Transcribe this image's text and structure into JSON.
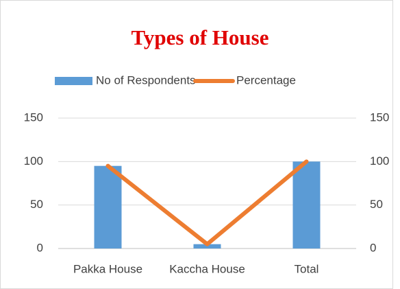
{
  "chart_data": {
    "type": "combo",
    "title": "Types of House",
    "categories": [
      "Pakka House",
      "Kaccha House",
      "Total"
    ],
    "series": [
      {
        "name": "No of Respondents",
        "type": "bar",
        "color": "#5b9bd5",
        "values": [
          95,
          5,
          100
        ]
      },
      {
        "name": "Percentage",
        "type": "line",
        "color": "#ed7d31",
        "values": [
          95,
          5,
          100
        ],
        "axis": "y2"
      }
    ],
    "ylim": [
      0,
      150
    ],
    "yticks": [
      0,
      50,
      100,
      150
    ],
    "y2lim": [
      0,
      150
    ],
    "y2ticks": [
      0,
      50,
      100,
      150
    ],
    "grid": true,
    "legend": "top"
  }
}
